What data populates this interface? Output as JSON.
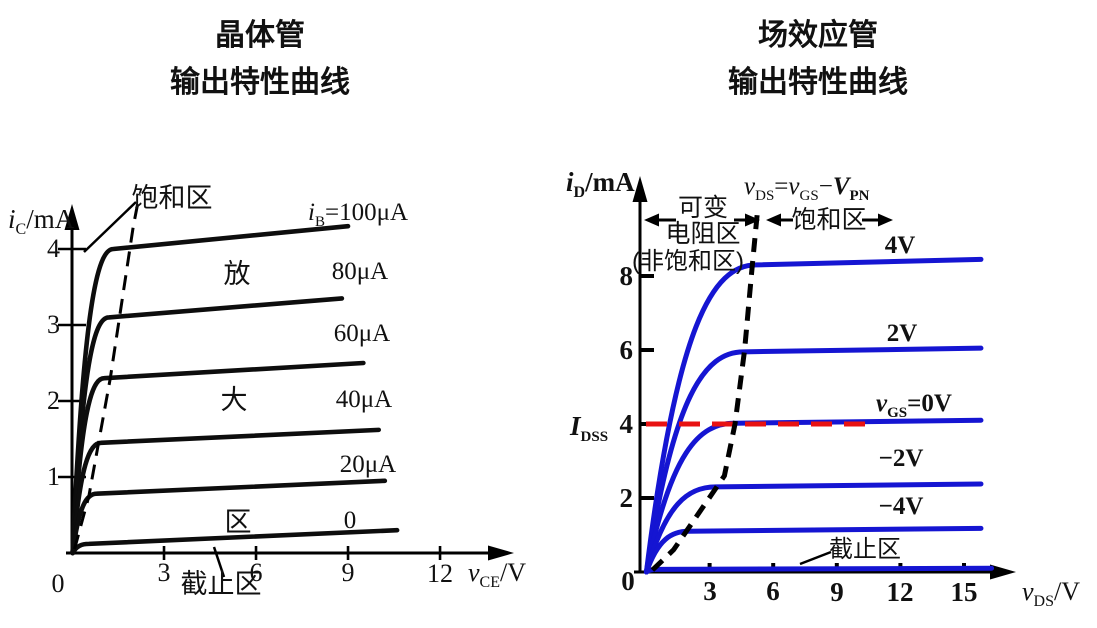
{
  "figure": {
    "left": {
      "title_line1": "晶体管",
      "title_line2": "输出特性曲线",
      "y_axis": {
        "var": "i",
        "sub": "C",
        "unit": "/mA"
      },
      "x_axis": {
        "var": "v",
        "sub": "CE",
        "unit": "/V"
      },
      "origin_label": "0",
      "regions": {
        "saturation": "饱和区",
        "amp_char1": "放",
        "amp_char2": "大",
        "amp_char3": "区",
        "cutoff": "截止区"
      }
    },
    "right": {
      "title_line1": "场效应管",
      "title_line2": "输出特性曲线",
      "y_axis": {
        "var": "i",
        "sub": "D",
        "unit": "/mA"
      },
      "x_axis": {
        "var": "v",
        "sub": "DS",
        "unit": "/V"
      },
      "origin_label": "0",
      "idss": {
        "var": "I",
        "sub": "DSS"
      },
      "equation": {
        "v1": "v",
        "s1": "DS",
        "eq": "=",
        "v2": "v",
        "s2": "GS",
        "minus": "−",
        "v3": "V",
        "s3": "PN"
      },
      "regions": {
        "vr_line1": "可变",
        "vr_line2": "电阻区",
        "vr_line3": "(非饱和区)",
        "saturation": "饱和区",
        "cutoff": "截止区"
      }
    }
  },
  "chart_data": [
    {
      "type": "line",
      "title": "晶体管输出特性曲线",
      "xlabel": "vCE/V",
      "ylabel": "iC/mA",
      "xlim": [
        0,
        14
      ],
      "ylim": [
        0,
        4.8
      ],
      "grid": false,
      "x_ticks": [
        3,
        6,
        9,
        12
      ],
      "y_ticks": [
        4,
        3,
        2,
        1
      ],
      "line_color": "#0d0d0d",
      "series": [
        {
          "label_var": "i",
          "label_sub": "B",
          "label_eq": "=",
          "label_value": "100μA",
          "ib_uA": 100,
          "knee_v": 1.35,
          "sat_start_mA": 4.0,
          "sat_end_mA": 4.3,
          "end_v": 9.0
        },
        {
          "label_value": "80μA",
          "ib_uA": 80,
          "knee_v": 1.2,
          "sat_start_mA": 3.1,
          "sat_end_mA": 3.35,
          "end_v": 8.8
        },
        {
          "label_value": "60μA",
          "ib_uA": 60,
          "knee_v": 1.05,
          "sat_start_mA": 2.3,
          "sat_end_mA": 2.5,
          "end_v": 9.5
        },
        {
          "label_value": "40μA",
          "ib_uA": 40,
          "knee_v": 0.95,
          "sat_start_mA": 1.45,
          "sat_end_mA": 1.62,
          "end_v": 10.0
        },
        {
          "label_value": "20μA",
          "ib_uA": 20,
          "knee_v": 0.8,
          "sat_start_mA": 0.78,
          "sat_end_mA": 0.95,
          "end_v": 10.2
        },
        {
          "label_value": "0",
          "ib_uA": 0,
          "knee_v": 0.55,
          "sat_start_mA": 0.12,
          "sat_end_mA": 0.3,
          "end_v": 10.6
        }
      ],
      "boundary_dashed": {
        "points_v_i": [
          [
            0.08,
            0.05
          ],
          [
            0.55,
            0.75
          ],
          [
            1.25,
            2.3
          ],
          [
            2.0,
            4.3
          ],
          [
            2.2,
            4.72
          ]
        ]
      },
      "regions": [
        "饱和区",
        "放大区",
        "截止区"
      ]
    },
    {
      "type": "line",
      "title": "场效应管输出特性曲线",
      "xlabel": "vDS/V",
      "ylabel": "iD/mA",
      "xlim": [
        0,
        17.5
      ],
      "ylim": [
        0,
        10.5
      ],
      "grid": false,
      "x_ticks": [
        3,
        6,
        9,
        12,
        15
      ],
      "y_ticks": [
        8,
        6,
        4,
        2
      ],
      "line_color": "#1515d2",
      "series": [
        {
          "label_value": "4V",
          "vgs_V": 4,
          "knee_v": 5.2,
          "sat_start_mA": 8.3,
          "sat_end_mA": 8.45,
          "end_v": 15.8
        },
        {
          "label_value": "2V",
          "vgs_V": 2,
          "knee_v": 4.6,
          "sat_start_mA": 5.95,
          "sat_end_mA": 6.05,
          "end_v": 15.8
        },
        {
          "label_var": "v",
          "label_sub": "GS",
          "label_eq": "=",
          "label_value": "0V",
          "vgs_V": 0,
          "knee_v": 4.15,
          "sat_start_mA": 4.02,
          "sat_end_mA": 4.1,
          "end_v": 15.8
        },
        {
          "label_value": "−2V",
          "vgs_V": -2,
          "knee_v": 3.3,
          "sat_start_mA": 2.3,
          "sat_end_mA": 2.38,
          "end_v": 15.8
        },
        {
          "label_value": "−4V",
          "vgs_V": -4,
          "knee_v": 2.0,
          "sat_start_mA": 1.1,
          "sat_end_mA": 1.18,
          "end_v": 15.8
        },
        {
          "vgs_V": null,
          "knee_v": 0.5,
          "sat_start_mA": 0.07,
          "sat_end_mA": 0.1,
          "end_v": 16.3
        }
      ],
      "idss_line": {
        "value_mA": 4,
        "v_end": 10.8,
        "color": "#e81212"
      },
      "boundary_dashed": {
        "points_v_i": [
          [
            0.3,
            0.05
          ],
          [
            1.3,
            0.6
          ],
          [
            2.5,
            1.6
          ],
          [
            3.7,
            2.6
          ],
          [
            4.2,
            4.0
          ],
          [
            4.65,
            6.0
          ],
          [
            5.0,
            8.2
          ],
          [
            5.25,
            9.7
          ]
        ]
      },
      "regions": [
        "可变电阻区(非饱和区)",
        "饱和区",
        "截止区"
      ],
      "equation": "vDS=vGS−VPN"
    }
  ]
}
